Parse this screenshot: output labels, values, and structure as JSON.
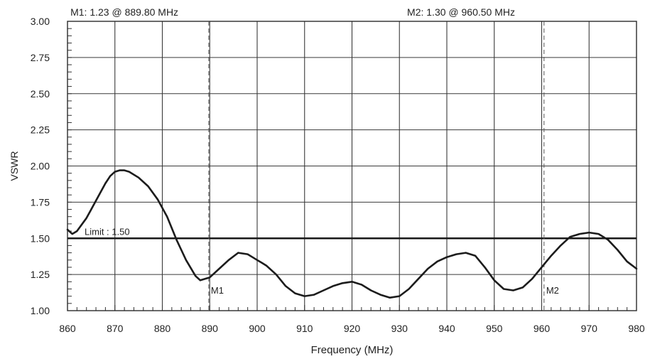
{
  "chart_data": {
    "type": "line",
    "xlabel": "Frequency (MHz)",
    "ylabel": "VSWR",
    "xlim": [
      860,
      980
    ],
    "ylim": [
      1.0,
      3.0
    ],
    "x_ticks": [
      "860",
      "870",
      "880",
      "890",
      "900",
      "910",
      "920",
      "930",
      "940",
      "950",
      "960",
      "970",
      "980"
    ],
    "y_ticks": [
      "1.00",
      "1.25",
      "1.50",
      "1.75",
      "2.00",
      "2.25",
      "2.50",
      "2.75",
      "3.00"
    ],
    "grid": true,
    "series": [
      {
        "x": [
          860,
          861,
          862,
          864,
          866,
          868,
          869,
          870,
          871,
          872,
          873,
          875,
          877,
          879,
          881,
          883,
          885,
          887,
          888,
          889,
          890,
          892,
          894,
          896,
          898,
          899,
          900,
          901,
          902,
          904,
          906,
          908,
          910,
          912,
          914,
          916,
          918,
          920,
          922,
          924,
          926,
          928,
          930,
          932,
          934,
          936,
          938,
          940,
          942,
          944,
          946,
          948,
          950,
          952,
          954,
          956,
          958,
          960,
          962,
          964,
          966,
          968,
          970,
          972,
          974,
          976,
          978,
          980
        ],
        "y": [
          1.56,
          1.53,
          1.55,
          1.64,
          1.76,
          1.88,
          1.93,
          1.96,
          1.97,
          1.97,
          1.96,
          1.92,
          1.86,
          1.77,
          1.65,
          1.49,
          1.35,
          1.24,
          1.21,
          1.22,
          1.23,
          1.29,
          1.35,
          1.4,
          1.39,
          1.37,
          1.35,
          1.33,
          1.31,
          1.25,
          1.17,
          1.12,
          1.1,
          1.11,
          1.14,
          1.17,
          1.19,
          1.2,
          1.18,
          1.14,
          1.11,
          1.09,
          1.1,
          1.15,
          1.22,
          1.29,
          1.34,
          1.37,
          1.39,
          1.4,
          1.38,
          1.3,
          1.21,
          1.15,
          1.14,
          1.16,
          1.22,
          1.3,
          1.38,
          1.45,
          1.51,
          1.53,
          1.54,
          1.53,
          1.49,
          1.42,
          1.34,
          1.29
        ]
      }
    ],
    "limit": {
      "value": 1.5,
      "label": "Limit : 1.50"
    },
    "markers": [
      {
        "name": "M1",
        "x": 889.8,
        "y": 1.23,
        "label": "M1",
        "readout": "M1: 1.23  @ 889.80 MHz"
      },
      {
        "name": "M2",
        "x": 960.5,
        "y": 1.3,
        "label": "M2",
        "readout": "M2: 1.30  @ 960.50 MHz"
      }
    ]
  }
}
